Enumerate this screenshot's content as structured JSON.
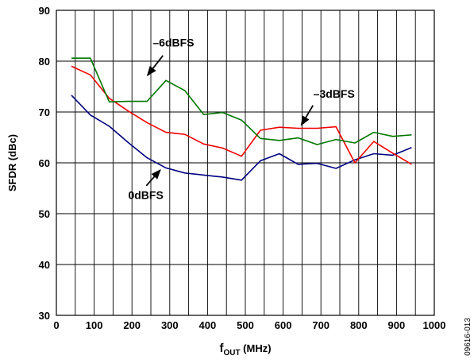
{
  "chart_data": {
    "type": "line",
    "xlabel_main": "f",
    "xlabel_sub": "OUT",
    "xlabel_unit": " (MHz)",
    "ylabel": "SFDR (dBc)",
    "xlim": [
      0,
      1000
    ],
    "ylim": [
      30,
      90
    ],
    "x_ticks": [
      0,
      100,
      200,
      300,
      400,
      500,
      600,
      700,
      800,
      900,
      1000
    ],
    "y_ticks": [
      30,
      40,
      50,
      60,
      70,
      80,
      90
    ],
    "x_minor_step": 50,
    "grid": true,
    "figure_id": "09616-013",
    "series": [
      {
        "name": "0dBFS",
        "color": "#000080",
        "x": [
          40,
          90,
          140,
          190,
          240,
          290,
          340,
          390,
          440,
          490,
          540,
          590,
          640,
          690,
          740,
          790,
          840,
          890,
          940
        ],
        "values": [
          73.3,
          69.4,
          67.2,
          64.0,
          61.0,
          59.0,
          58.0,
          57.6,
          57.2,
          56.6,
          60.4,
          61.8,
          59.7,
          59.9,
          58.9,
          60.6,
          61.8,
          61.5,
          63.0
        ]
      },
      {
        "name": "−3dBFS",
        "color": "#ee0000",
        "x": [
          40,
          90,
          140,
          190,
          240,
          290,
          340,
          390,
          440,
          490,
          540,
          590,
          640,
          690,
          740,
          790,
          840,
          890,
          940
        ],
        "values": [
          79.0,
          77.3,
          72.7,
          70.2,
          67.9,
          66.0,
          65.6,
          63.7,
          62.9,
          61.3,
          66.4,
          67.0,
          66.8,
          66.8,
          67.1,
          60.0,
          64.2,
          61.9,
          59.7
        ]
      },
      {
        "name": "−6dBFS",
        "color": "#007700",
        "x": [
          40,
          90,
          140,
          190,
          240,
          290,
          340,
          390,
          440,
          490,
          540,
          590,
          640,
          690,
          740,
          790,
          840,
          890,
          940
        ],
        "values": [
          80.6,
          80.6,
          72.0,
          72.1,
          72.1,
          76.2,
          74.2,
          69.5,
          69.9,
          68.4,
          64.8,
          64.4,
          64.9,
          63.6,
          64.6,
          63.9,
          66.0,
          65.2,
          65.5
        ]
      }
    ],
    "annotations": [
      {
        "label": "–6dBFS",
        "text_x": 255,
        "text_y": 82.9,
        "arrow_from": [
          282,
          81.1
        ],
        "arrow_to": [
          241,
          77.2
        ]
      },
      {
        "label": "–3dBFS",
        "text_x": 680,
        "text_y": 72.8,
        "arrow_from": [
          679,
          71.3
        ],
        "arrow_to": [
          648,
          67.4
        ]
      },
      {
        "label": "0dBFS",
        "text_x": 190,
        "text_y": 52.9,
        "arrow_from": [
          238,
          55.5
        ],
        "arrow_to": [
          275,
          58.6
        ]
      }
    ]
  }
}
